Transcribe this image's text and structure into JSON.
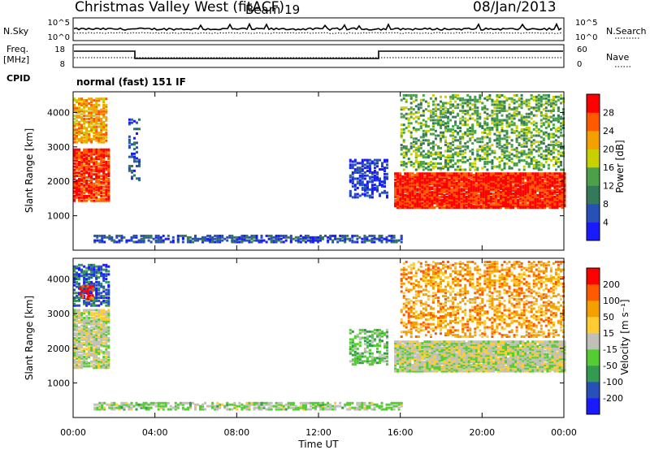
{
  "header": {
    "station": "Christmas Valley West (fitACF)",
    "beam": "Beam 19",
    "date": "08/Jan/2013"
  },
  "noise_panel": {
    "left_label": "N.Sky",
    "left_ticks": [
      "10^5",
      "10^0"
    ],
    "right_label": "N.Search",
    "right_ticks": [
      "10^5",
      "10^0"
    ]
  },
  "freq_panel": {
    "left_label_line1": "Freq.",
    "left_label_line2": "[MHz]",
    "left_ticks": [
      "18",
      "8"
    ],
    "right_label": "Nave",
    "right_ticks": [
      "60",
      "0"
    ]
  },
  "cpid": {
    "label": "CPID",
    "value": "normal (fast) 151 IF"
  },
  "colors": {
    "power": [
      "#1a1aff",
      "#2851b8",
      "#347a5a",
      "#4aa14a",
      "#c8d000",
      "#f4a000",
      "#ff5a00",
      "#ff0000"
    ],
    "velocity": [
      "#1a1aff",
      "#2851b8",
      "#349a50",
      "#55cc33",
      "#c0c0b8",
      "#ffcc33",
      "#f4a000",
      "#ff5a00",
      "#ff0000"
    ]
  },
  "chart_data": [
    {
      "type": "heatmap",
      "quantity": "power",
      "ylabel": "Slant Range [km]",
      "yticks": [
        1000,
        2000,
        3000,
        4000
      ],
      "ylim": [
        0,
        4600
      ],
      "colorbar_label": "Power [dB]",
      "colorbar_ticks": [
        "4",
        "8",
        "12",
        "16",
        "20",
        "24",
        "28"
      ],
      "xlim": [
        0,
        24
      ],
      "regions": [
        {
          "t0": 0.0,
          "t1": 1.8,
          "r0": 1400,
          "r1": 2900,
          "level": 6.5,
          "dens": 0.8
        },
        {
          "t0": 0.0,
          "t1": 1.6,
          "r0": 3100,
          "r1": 4400,
          "level": 5.0,
          "dens": 0.7
        },
        {
          "t0": 2.7,
          "t1": 3.2,
          "r0": 2000,
          "r1": 3800,
          "level": 1.0,
          "dens": 0.3
        },
        {
          "t0": 1.0,
          "t1": 16.0,
          "r0": 200,
          "r1": 400,
          "level": 1.0,
          "dens": 0.6
        },
        {
          "t0": 13.5,
          "t1": 15.3,
          "r0": 1500,
          "r1": 2600,
          "level": 0.5,
          "dens": 0.5
        },
        {
          "t0": 15.7,
          "t1": 24.0,
          "r0": 1200,
          "r1": 2200,
          "level": 6.8,
          "dens": 0.95
        },
        {
          "t0": 16.0,
          "t1": 24.0,
          "r0": 2300,
          "r1": 4500,
          "level": 3.0,
          "dens": 0.4
        }
      ]
    },
    {
      "type": "heatmap",
      "quantity": "velocity",
      "ylabel": "Slant Range [km]",
      "yticks": [
        1000,
        2000,
        3000,
        4000
      ],
      "ylim": [
        0,
        4600
      ],
      "xlabel": "Time UT",
      "xticks": [
        "00:00",
        "04:00",
        "08:00",
        "12:00",
        "16:00",
        "20:00",
        "00:00"
      ],
      "colorbar_label": "Velocity [m s⁻¹]",
      "colorbar_ticks": [
        "-200",
        "-100",
        "-50",
        "-15",
        "15",
        "50",
        "100",
        "200"
      ],
      "xlim": [
        0,
        24
      ],
      "regions": [
        {
          "t0": 0.0,
          "t1": 1.8,
          "r0": 1400,
          "r1": 3100,
          "level": 4.0,
          "dens": 0.8
        },
        {
          "t0": 0.0,
          "t1": 1.7,
          "r0": 3200,
          "r1": 4400,
          "level": 1.0,
          "dens": 0.6
        },
        {
          "t0": 0.3,
          "t1": 1.0,
          "r0": 3400,
          "r1": 3800,
          "level": 7.5,
          "dens": 0.5
        },
        {
          "t0": 1.0,
          "t1": 16.0,
          "r0": 200,
          "r1": 420,
          "level": 3.5,
          "dens": 0.6
        },
        {
          "t0": 13.5,
          "t1": 15.3,
          "r0": 1500,
          "r1": 2500,
          "level": 3.0,
          "dens": 0.5
        },
        {
          "t0": 15.7,
          "t1": 24.0,
          "r0": 1300,
          "r1": 2200,
          "level": 4.0,
          "dens": 0.95
        },
        {
          "t0": 16.0,
          "t1": 24.0,
          "r0": 2300,
          "r1": 4500,
          "level": 6.0,
          "dens": 0.4
        }
      ]
    }
  ]
}
